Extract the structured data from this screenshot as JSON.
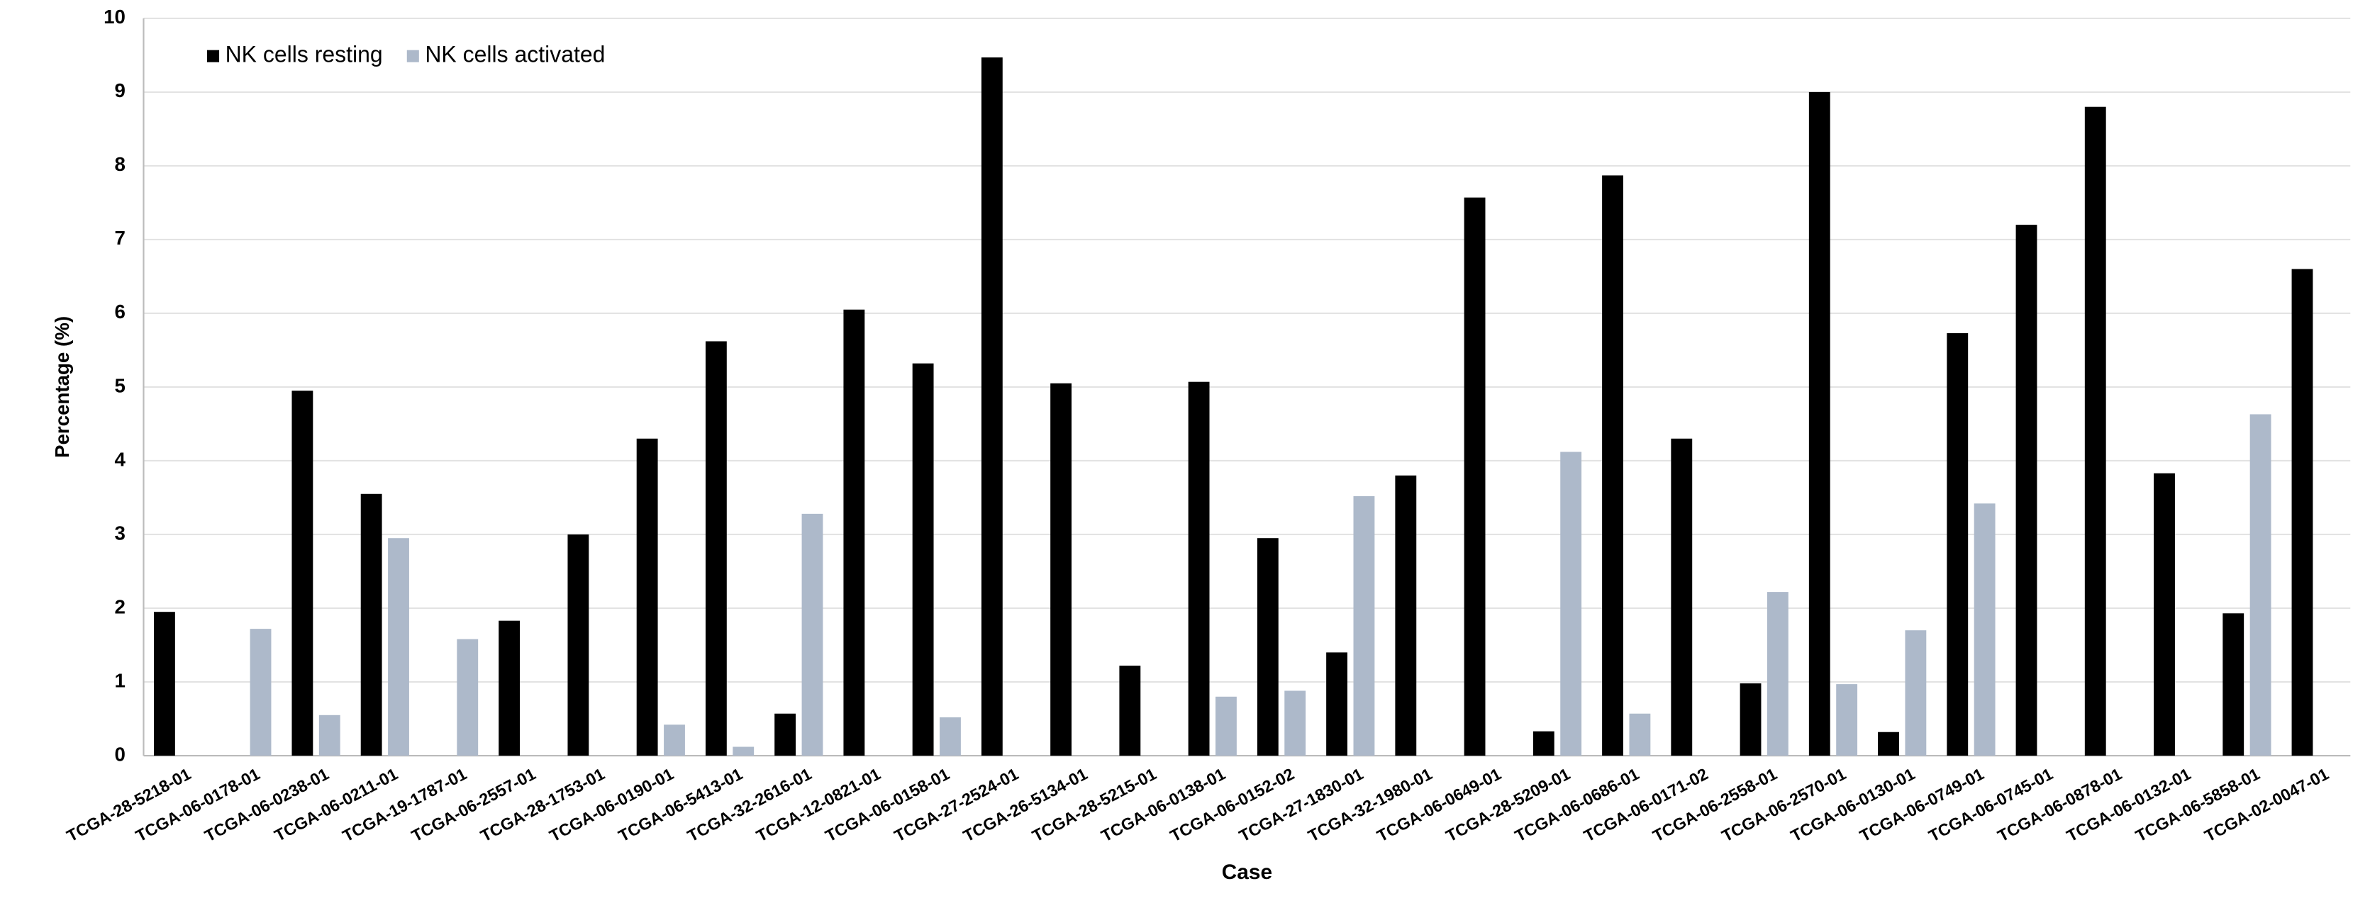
{
  "chart_data": {
    "type": "bar",
    "y_label": "Percentage (%)",
    "x_label": "Case",
    "categories": [
      "TCGA-28-5218-01",
      "TCGA-06-0178-01",
      "TCGA-06-0238-01",
      "TCGA-06-0211-01",
      "TCGA-19-1787-01",
      "TCGA-06-2557-01",
      "TCGA-28-1753-01",
      "TCGA-06-0190-01",
      "TCGA-06-5413-01",
      "TCGA-32-2616-01",
      "TCGA-12-0821-01",
      "TCGA-06-0158-01",
      "TCGA-27-2524-01",
      "TCGA-26-5134-01",
      "TCGA-28-5215-01",
      "TCGA-06-0138-01",
      "TCGA-06-0152-02",
      "TCGA-27-1830-01",
      "TCGA-32-1980-01",
      "TCGA-06-0649-01",
      "TCGA-28-5209-01",
      "TCGA-06-0686-01",
      "TCGA-06-0171-02",
      "TCGA-06-2558-01",
      "TCGA-06-2570-01",
      "TCGA-06-0130-01",
      "TCGA-06-0749-01",
      "TCGA-06-0745-01",
      "TCGA-06-0878-01",
      "TCGA-06-0132-01",
      "TCGA-06-5858-01",
      "TCGA-02-0047-01"
    ],
    "series": [
      {
        "name": "NK cells resting",
        "color": "#000000",
        "values": [
          1.95,
          0,
          4.95,
          3.55,
          0,
          1.83,
          3.0,
          4.3,
          5.62,
          0.57,
          6.05,
          5.32,
          9.47,
          5.05,
          1.22,
          5.07,
          2.95,
          1.4,
          3.8,
          7.57,
          0.33,
          7.87,
          4.3,
          0.98,
          9.0,
          0.32,
          5.73,
          7.2,
          8.8,
          3.83,
          1.93,
          6.6
        ]
      },
      {
        "name": "NK cells activated",
        "color": "#adb9ca",
        "values": [
          0,
          1.72,
          0.55,
          2.95,
          1.58,
          0,
          0,
          0.42,
          0.12,
          3.28,
          0,
          0.52,
          0,
          0,
          0,
          0.8,
          0.88,
          3.52,
          0,
          0,
          4.12,
          0.57,
          0,
          2.22,
          0.97,
          1.7,
          3.42,
          0,
          0,
          0,
          4.63,
          0
        ]
      }
    ],
    "ylim": [
      0,
      10
    ],
    "yticks": [
      0,
      1,
      2,
      3,
      4,
      5,
      6,
      7,
      8,
      9,
      10
    ],
    "grid": true,
    "legend": "top-left"
  }
}
